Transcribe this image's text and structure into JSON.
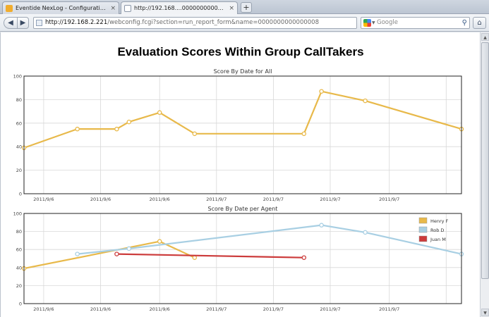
{
  "browser": {
    "tabs": [
      {
        "label": "Eventide NexLog - Configuration M...",
        "close": "×"
      },
      {
        "label": "http://192.168....0000000000000008",
        "close": "×"
      }
    ],
    "new_tab": "+",
    "url_host": "http://192.168.2.221",
    "url_path": "/webconfig.fcgi?section=run_report_form&name=0000000000000008",
    "search_placeholder": "Google",
    "icons": {
      "back": "back-arrow-icon",
      "forward": "forward-arrow-icon",
      "bookmark": "star-icon",
      "reload": "reload-icon",
      "search": "magnifier-icon",
      "home": "home-icon",
      "engine": "google-icon"
    }
  },
  "report": {
    "title": "Evaluation Scores Within Group CallTakers"
  },
  "colors": {
    "henry": "#e8b94a",
    "rob": "#a8cfe3",
    "juan": "#cc3b3b",
    "grid": "#d8d8d8"
  },
  "chart_data": [
    {
      "type": "line",
      "title": "Score By Date for All",
      "ylim": [
        0,
        100
      ],
      "yticks": [
        "0",
        "20",
        "40",
        "60",
        "80",
        "100"
      ],
      "xticks": [
        "2011/9/6",
        "2011/9/6",
        "2011/9/6",
        "2011/9/7",
        "2011/9/7",
        "2011/9/7",
        "2011/9/7"
      ],
      "grid": true,
      "series": [
        {
          "color": "#e8b94a",
          "x": [
            0,
            0.122,
            0.212,
            0.24,
            0.31,
            0.39,
            0.64,
            0.68,
            0.78,
            1.0
          ],
          "y": [
            39,
            55,
            55,
            61,
            69,
            51,
            51,
            87,
            79,
            55
          ]
        }
      ]
    },
    {
      "type": "line",
      "title": "Score By Date per Agent",
      "ylim": [
        0,
        100
      ],
      "yticks": [
        "0",
        "20",
        "40",
        "60",
        "80",
        "100"
      ],
      "xticks": [
        "2011/9/6",
        "2011/9/6",
        "2011/9/6",
        "2011/9/7",
        "2011/9/7",
        "2011/9/7",
        "2011/9/7"
      ],
      "grid": true,
      "legend_position": "top-right",
      "series": [
        {
          "name": "Henry F",
          "color": "#e8b94a",
          "x": [
            0,
            0.31,
            0.39
          ],
          "y": [
            39,
            69,
            51
          ]
        },
        {
          "name": "Rob D",
          "color": "#a8cfe3",
          "x": [
            0.122,
            0.24,
            0.68,
            0.78,
            1.0
          ],
          "y": [
            55,
            61,
            87,
            79,
            55
          ]
        },
        {
          "name": "Juan M",
          "color": "#cc3b3b",
          "x": [
            0.212,
            0.64
          ],
          "y": [
            55,
            51
          ]
        }
      ]
    }
  ]
}
